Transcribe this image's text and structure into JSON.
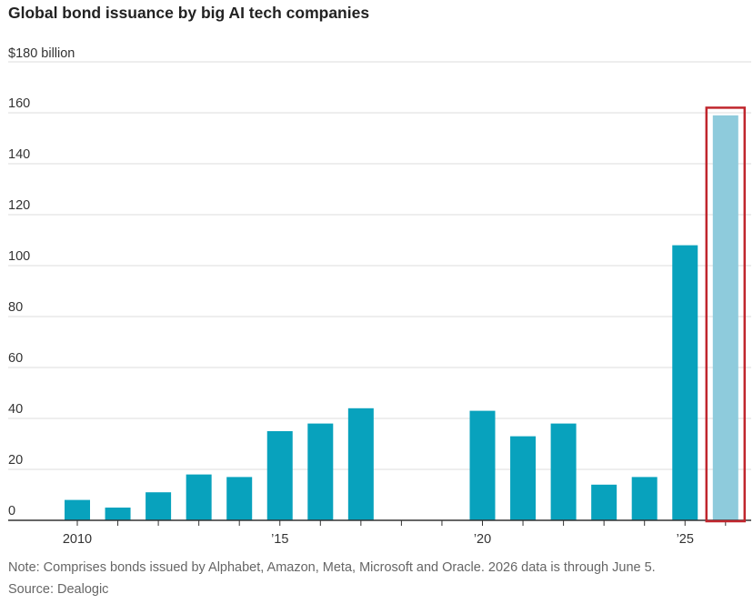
{
  "chart_data": {
    "type": "bar",
    "title": "Global bond issuance by big AI tech companies",
    "y_unit_label": "$180 billion",
    "ylim": [
      0,
      180
    ],
    "y_ticks": [
      0,
      20,
      40,
      60,
      80,
      100,
      120,
      140,
      160
    ],
    "x_ticks": [
      {
        "year": 2010,
        "label": "2010"
      },
      {
        "year": 2015,
        "label": "’15"
      },
      {
        "year": 2020,
        "label": "’20"
      },
      {
        "year": 2025,
        "label": "’25"
      }
    ],
    "grid": true,
    "colors": {
      "bar": "#08a2bd",
      "bar_partial": "#8ecbdc",
      "highlight_box": "#c0262d",
      "grid": "#dddddd",
      "axis": "#333333"
    },
    "series": [
      {
        "values": [
          {
            "year": 2010,
            "value": 8
          },
          {
            "year": 2011,
            "value": 5
          },
          {
            "year": 2012,
            "value": 11
          },
          {
            "year": 2013,
            "value": 18
          },
          {
            "year": 2014,
            "value": 17
          },
          {
            "year": 2015,
            "value": 35
          },
          {
            "year": 2016,
            "value": 38
          },
          {
            "year": 2017,
            "value": 44
          },
          {
            "year": 2018,
            "value": 0
          },
          {
            "year": 2019,
            "value": 0
          },
          {
            "year": 2020,
            "value": 43
          },
          {
            "year": 2021,
            "value": 33
          },
          {
            "year": 2022,
            "value": 38
          },
          {
            "year": 2023,
            "value": 14
          },
          {
            "year": 2024,
            "value": 17
          },
          {
            "year": 2025,
            "value": 108
          },
          {
            "year": 2026,
            "value": 159,
            "partial": true,
            "highlighted": true
          }
        ]
      }
    ]
  },
  "footnote": {
    "note": "Note: Comprises bonds issued by Alphabet, Amazon, Meta, Microsoft and Oracle. 2026 data is through June 5.",
    "source": "Source: Dealogic"
  }
}
